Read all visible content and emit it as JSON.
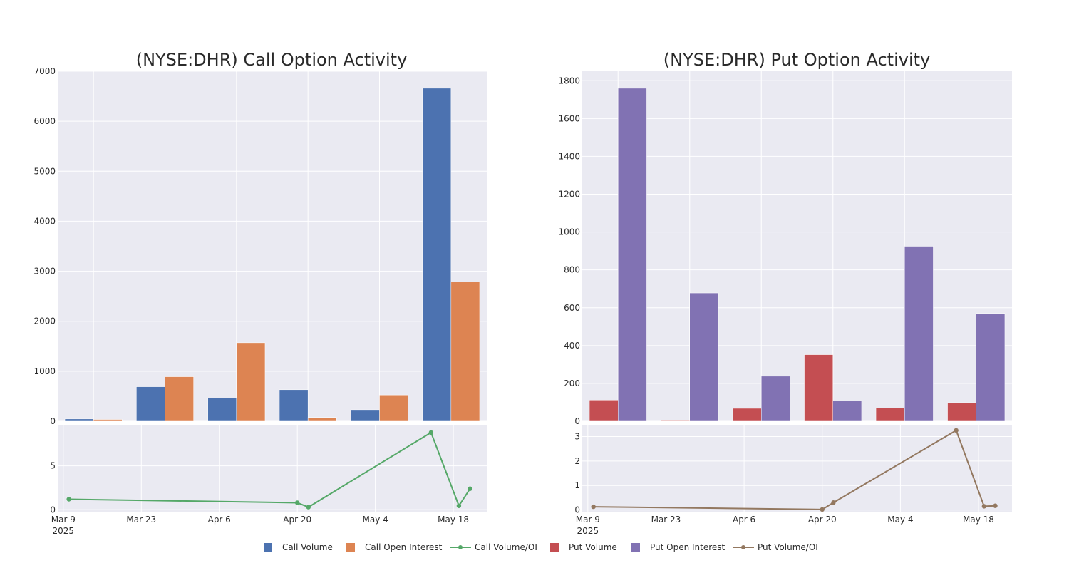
{
  "charts": {
    "call": {
      "title": "(NYSE:DHR) Call Option Activity",
      "bars": {
        "type": "bar",
        "categories": [
          "Mar 10",
          "Mar 24",
          "Apr 7",
          "Apr 21",
          "May 5",
          "May 19"
        ],
        "series": [
          {
            "name": "Call Volume",
            "color": "#4c72b0",
            "values": [
              45,
              690,
              465,
              630,
              230,
              6660
            ]
          },
          {
            "name": "Call Open Interest",
            "color": "#dd8452",
            "values": [
              35,
              890,
              1570,
              75,
              525,
              2790
            ]
          }
        ],
        "ylim": [
          0,
          7000
        ],
        "yticks": [
          0,
          1000,
          2000,
          3000,
          4000,
          5000,
          6000,
          7000
        ]
      },
      "ratio": {
        "type": "line",
        "name": "Call Volume/OI",
        "color": "#55a868",
        "x": [
          "2025-03-10",
          "2025-04-20",
          "2025-04-22",
          "2025-05-14",
          "2025-05-19",
          "2025-05-21"
        ],
        "y": [
          1.2,
          0.8,
          0.3,
          8.8,
          0.45,
          2.4
        ],
        "ylim": [
          -0.3,
          9.6
        ],
        "yticks": [
          0,
          5
        ]
      }
    },
    "put": {
      "title": "(NYSE:DHR) Put Option Activity",
      "bars": {
        "type": "bar",
        "categories": [
          "Mar 10",
          "Mar 24",
          "Apr 7",
          "Apr 21",
          "May 5",
          "May 19"
        ],
        "series": [
          {
            "name": "Put Volume",
            "color": "#c44e52",
            "values": [
              112,
              3,
              68,
              352,
              70,
              98
            ]
          },
          {
            "name": "Put Open Interest",
            "color": "#8172b3",
            "values": [
              1760,
              678,
              238,
              108,
              925,
              570
            ]
          }
        ],
        "ylim": [
          0,
          1850
        ],
        "yticks": [
          0,
          200,
          400,
          600,
          800,
          1000,
          1200,
          1400,
          1600,
          1800
        ]
      },
      "ratio": {
        "type": "line",
        "name": "Put Volume/OI",
        "color": "#937860",
        "x": [
          "2025-03-10",
          "2025-04-20",
          "2025-04-22",
          "2025-05-14",
          "2025-05-19",
          "2025-05-21"
        ],
        "y": [
          0.13,
          0.02,
          0.3,
          3.25,
          0.15,
          0.17
        ],
        "ylim": [
          -0.1,
          3.45
        ],
        "yticks": [
          0,
          1,
          2,
          3
        ]
      }
    },
    "xaxis": {
      "ticks": [
        "2025-03-09",
        "2025-03-23",
        "2025-04-06",
        "2025-04-20",
        "2025-05-04",
        "2025-05-18"
      ],
      "tick_labels": [
        "Mar 9",
        "Mar 23",
        "Apr 6",
        "Apr 20",
        "May 4",
        "May 18"
      ],
      "year_label": "2025",
      "range": [
        "2025-03-08",
        "2025-05-24"
      ]
    }
  },
  "legend": {
    "items": [
      {
        "label": "Call Volume",
        "kind": "bar",
        "color": "#4c72b0"
      },
      {
        "label": "Call Open Interest",
        "kind": "bar",
        "color": "#dd8452"
      },
      {
        "label": "Call Volume/OI",
        "kind": "line",
        "color": "#55a868"
      },
      {
        "label": "Put Volume",
        "kind": "bar",
        "color": "#c44e52"
      },
      {
        "label": "Put Open Interest",
        "kind": "bar",
        "color": "#8172b3"
      },
      {
        "label": "Put Volume/OI",
        "kind": "line",
        "color": "#937860"
      }
    ]
  }
}
